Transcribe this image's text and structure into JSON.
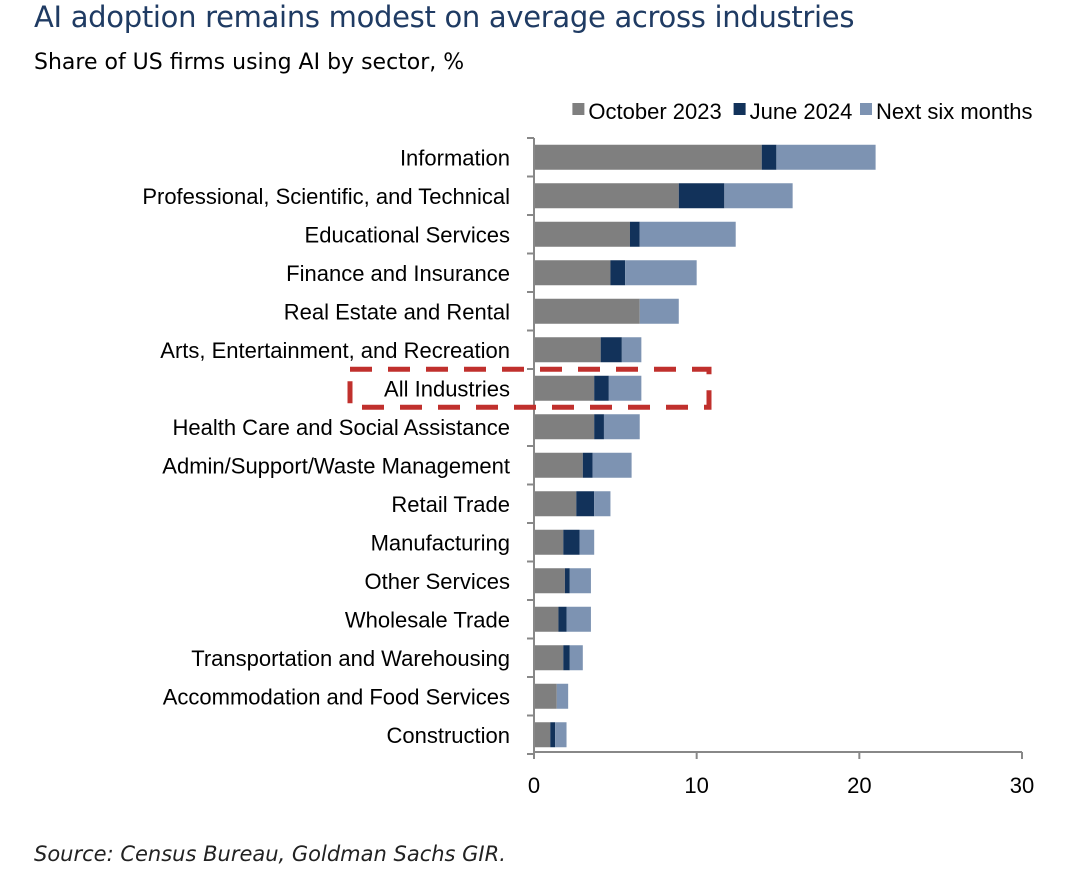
{
  "chart_data": {
    "type": "bar",
    "orientation": "horizontal",
    "stacked": true,
    "title": "AI adoption remains modest on average across industries",
    "subtitle": "Share of US firms using AI by sector, %",
    "source": "Source: Census Bureau, Goldman Sachs GIR.",
    "categories": [
      "Information",
      "Professional, Scientific, and Technical",
      "Educational Services",
      "Finance and Insurance",
      "Real Estate and Rental",
      "Arts, Entertainment, and Recreation",
      "All Industries",
      "Health Care and Social Assistance",
      "Admin/Support/Waste Management",
      "Retail Trade",
      "Manufacturing",
      "Other Services",
      "Wholesale Trade",
      "Transportation and Warehousing",
      "Accommodation and Food Services",
      "Construction"
    ],
    "series": [
      {
        "name": "October 2023",
        "color": "#7f7f7f",
        "values": [
          14.0,
          8.9,
          5.9,
          4.7,
          6.5,
          4.1,
          3.7,
          3.7,
          3.0,
          2.6,
          1.8,
          1.9,
          1.5,
          1.8,
          1.4,
          1.0
        ]
      },
      {
        "name": "June 2024",
        "color": "#12325a",
        "values": [
          0.9,
          2.8,
          0.6,
          0.9,
          0.0,
          1.3,
          0.9,
          0.6,
          0.6,
          1.1,
          1.0,
          0.3,
          0.5,
          0.4,
          0.0,
          0.3
        ]
      },
      {
        "name": "Next six months",
        "color": "#7d93b2",
        "values": [
          6.1,
          4.2,
          5.9,
          4.4,
          2.4,
          1.2,
          2.0,
          2.2,
          2.4,
          1.0,
          0.9,
          1.3,
          1.5,
          0.8,
          0.7,
          0.7
        ]
      }
    ],
    "xlim": [
      0,
      30
    ],
    "xticks": [
      "0",
      "10",
      "20",
      "30"
    ],
    "grid": false,
    "legend": "top-right",
    "highlight": {
      "category": "All Industries",
      "style": "red dashed box",
      "color": "#c0302d"
    }
  }
}
